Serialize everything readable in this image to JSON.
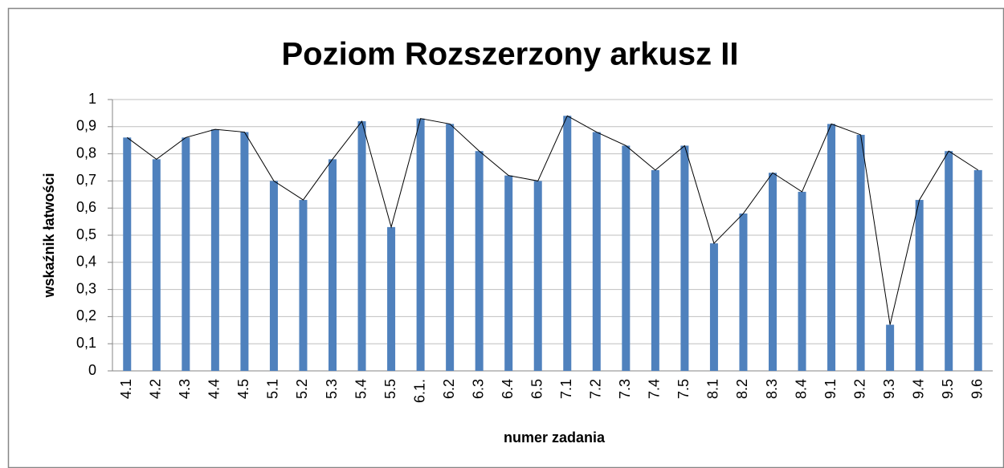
{
  "chart_data": {
    "type": "bar",
    "title": "Poziom Rozszerzony arkusz II",
    "x_label": "numer zadania",
    "y_label": "wskaźnik łatwości",
    "categories": [
      "4.1",
      "4.2",
      "4.3",
      "4.4",
      "4.5",
      "5.1",
      "5.2",
      "5.3",
      "5.4",
      "5.5",
      "6.1.",
      "6.2",
      "6.3",
      "6.4",
      "6.5",
      "7.1",
      "7.2",
      "7.3",
      "7.4",
      "7.5",
      "8.1",
      "8.2",
      "8.3",
      "8.4",
      "9.1",
      "9.2",
      "9.3",
      "9.4",
      "9.5",
      "9.6"
    ],
    "values": [
      0.86,
      0.78,
      0.86,
      0.89,
      0.88,
      0.7,
      0.63,
      0.78,
      0.92,
      0.53,
      0.93,
      0.91,
      0.81,
      0.72,
      0.7,
      0.94,
      0.88,
      0.83,
      0.74,
      0.83,
      0.47,
      0.58,
      0.73,
      0.66,
      0.91,
      0.87,
      0.17,
      0.63,
      0.81,
      0.74
    ],
    "color": "#4f81bd",
    "line_color": "#000000",
    "ylim": [
      0,
      1
    ],
    "yticks": [
      0,
      {
        "value": 0.1,
        "label": "0,1"
      },
      {
        "value": 0.2,
        "label": "0,2"
      },
      {
        "value": 0.3,
        "label": "0,3"
      },
      {
        "value": 0.4,
        "label": "0,4"
      },
      {
        "value": 0.5,
        "label": "0,5"
      },
      {
        "value": 0.6,
        "label": "0,6"
      },
      {
        "value": 0.7,
        "label": "0,7"
      },
      {
        "value": 0.8,
        "label": "0,8"
      },
      {
        "value": 0.9,
        "label": "0,9"
      },
      1
    ],
    "grid": true
  }
}
